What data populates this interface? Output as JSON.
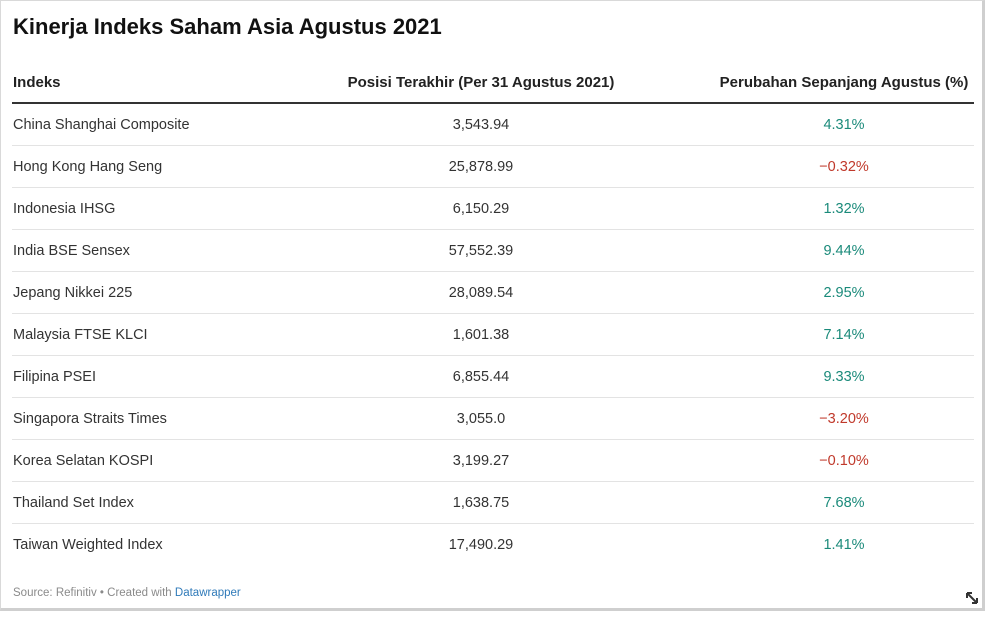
{
  "title": "Kinerja Indeks Saham Asia Agustus 2021",
  "headers": [
    "Indeks",
    "Posisi Terakhir (Per 31 Agustus 2021)",
    "Perubahan Sepanjang Agustus (%)"
  ],
  "rows": [
    {
      "index": "China Shanghai Composite",
      "position": "3,543.94",
      "change": "4.31%",
      "dir": "pos"
    },
    {
      "index": "Hong Kong Hang Seng",
      "position": "25,878.99",
      "change": "−0.32%",
      "dir": "neg"
    },
    {
      "index": "Indonesia IHSG",
      "position": "6,150.29",
      "change": "1.32%",
      "dir": "pos"
    },
    {
      "index": "India BSE Sensex",
      "position": "57,552.39",
      "change": "9.44%",
      "dir": "pos"
    },
    {
      "index": "Jepang Nikkei 225",
      "position": "28,089.54",
      "change": "2.95%",
      "dir": "pos"
    },
    {
      "index": "Malaysia FTSE KLCI",
      "position": "1,601.38",
      "change": "7.14%",
      "dir": "pos"
    },
    {
      "index": "Filipina PSEI",
      "position": "6,855.44",
      "change": "9.33%",
      "dir": "pos"
    },
    {
      "index": "Singapora Straits Times",
      "position": "3,055.0",
      "change": "−3.20%",
      "dir": "neg"
    },
    {
      "index": "Korea Selatan KOSPI",
      "position": "3,199.27",
      "change": "−0.10%",
      "dir": "neg"
    },
    {
      "index": "Thailand Set Index",
      "position": "1,638.75",
      "change": "7.68%",
      "dir": "pos"
    },
    {
      "index": "Taiwan Weighted Index",
      "position": "17,490.29",
      "change": "1.41%",
      "dir": "pos"
    }
  ],
  "footer": {
    "source": "Source: Refinitiv • Created with ",
    "link": "Datawrapper"
  },
  "colors": {
    "positive": "#1a8a7a",
    "negative": "#c0392b"
  },
  "chart_data": {
    "type": "table",
    "title": "Kinerja Indeks Saham Asia Agustus 2021",
    "columns": [
      "Indeks",
      "Posisi Terakhir (Per 31 Agustus 2021)",
      "Perubahan Sepanjang Agustus (%)"
    ],
    "categories": [
      "China Shanghai Composite",
      "Hong Kong Hang Seng",
      "Indonesia IHSG",
      "India BSE Sensex",
      "Jepang Nikkei 225",
      "Malaysia FTSE KLCI",
      "Filipina PSEI",
      "Singapora Straits Times",
      "Korea Selatan KOSPI",
      "Thailand Set Index",
      "Taiwan Weighted Index"
    ],
    "series": [
      {
        "name": "Posisi Terakhir (Per 31 Agustus 2021)",
        "values": [
          3543.94,
          25878.99,
          6150.29,
          57552.39,
          28089.54,
          1601.38,
          6855.44,
          3055.0,
          3199.27,
          1638.75,
          17490.29
        ]
      },
      {
        "name": "Perubahan Sepanjang Agustus (%)",
        "values": [
          4.31,
          -0.32,
          1.32,
          9.44,
          2.95,
          7.14,
          9.33,
          -3.2,
          -0.1,
          7.68,
          1.41
        ]
      }
    ]
  }
}
